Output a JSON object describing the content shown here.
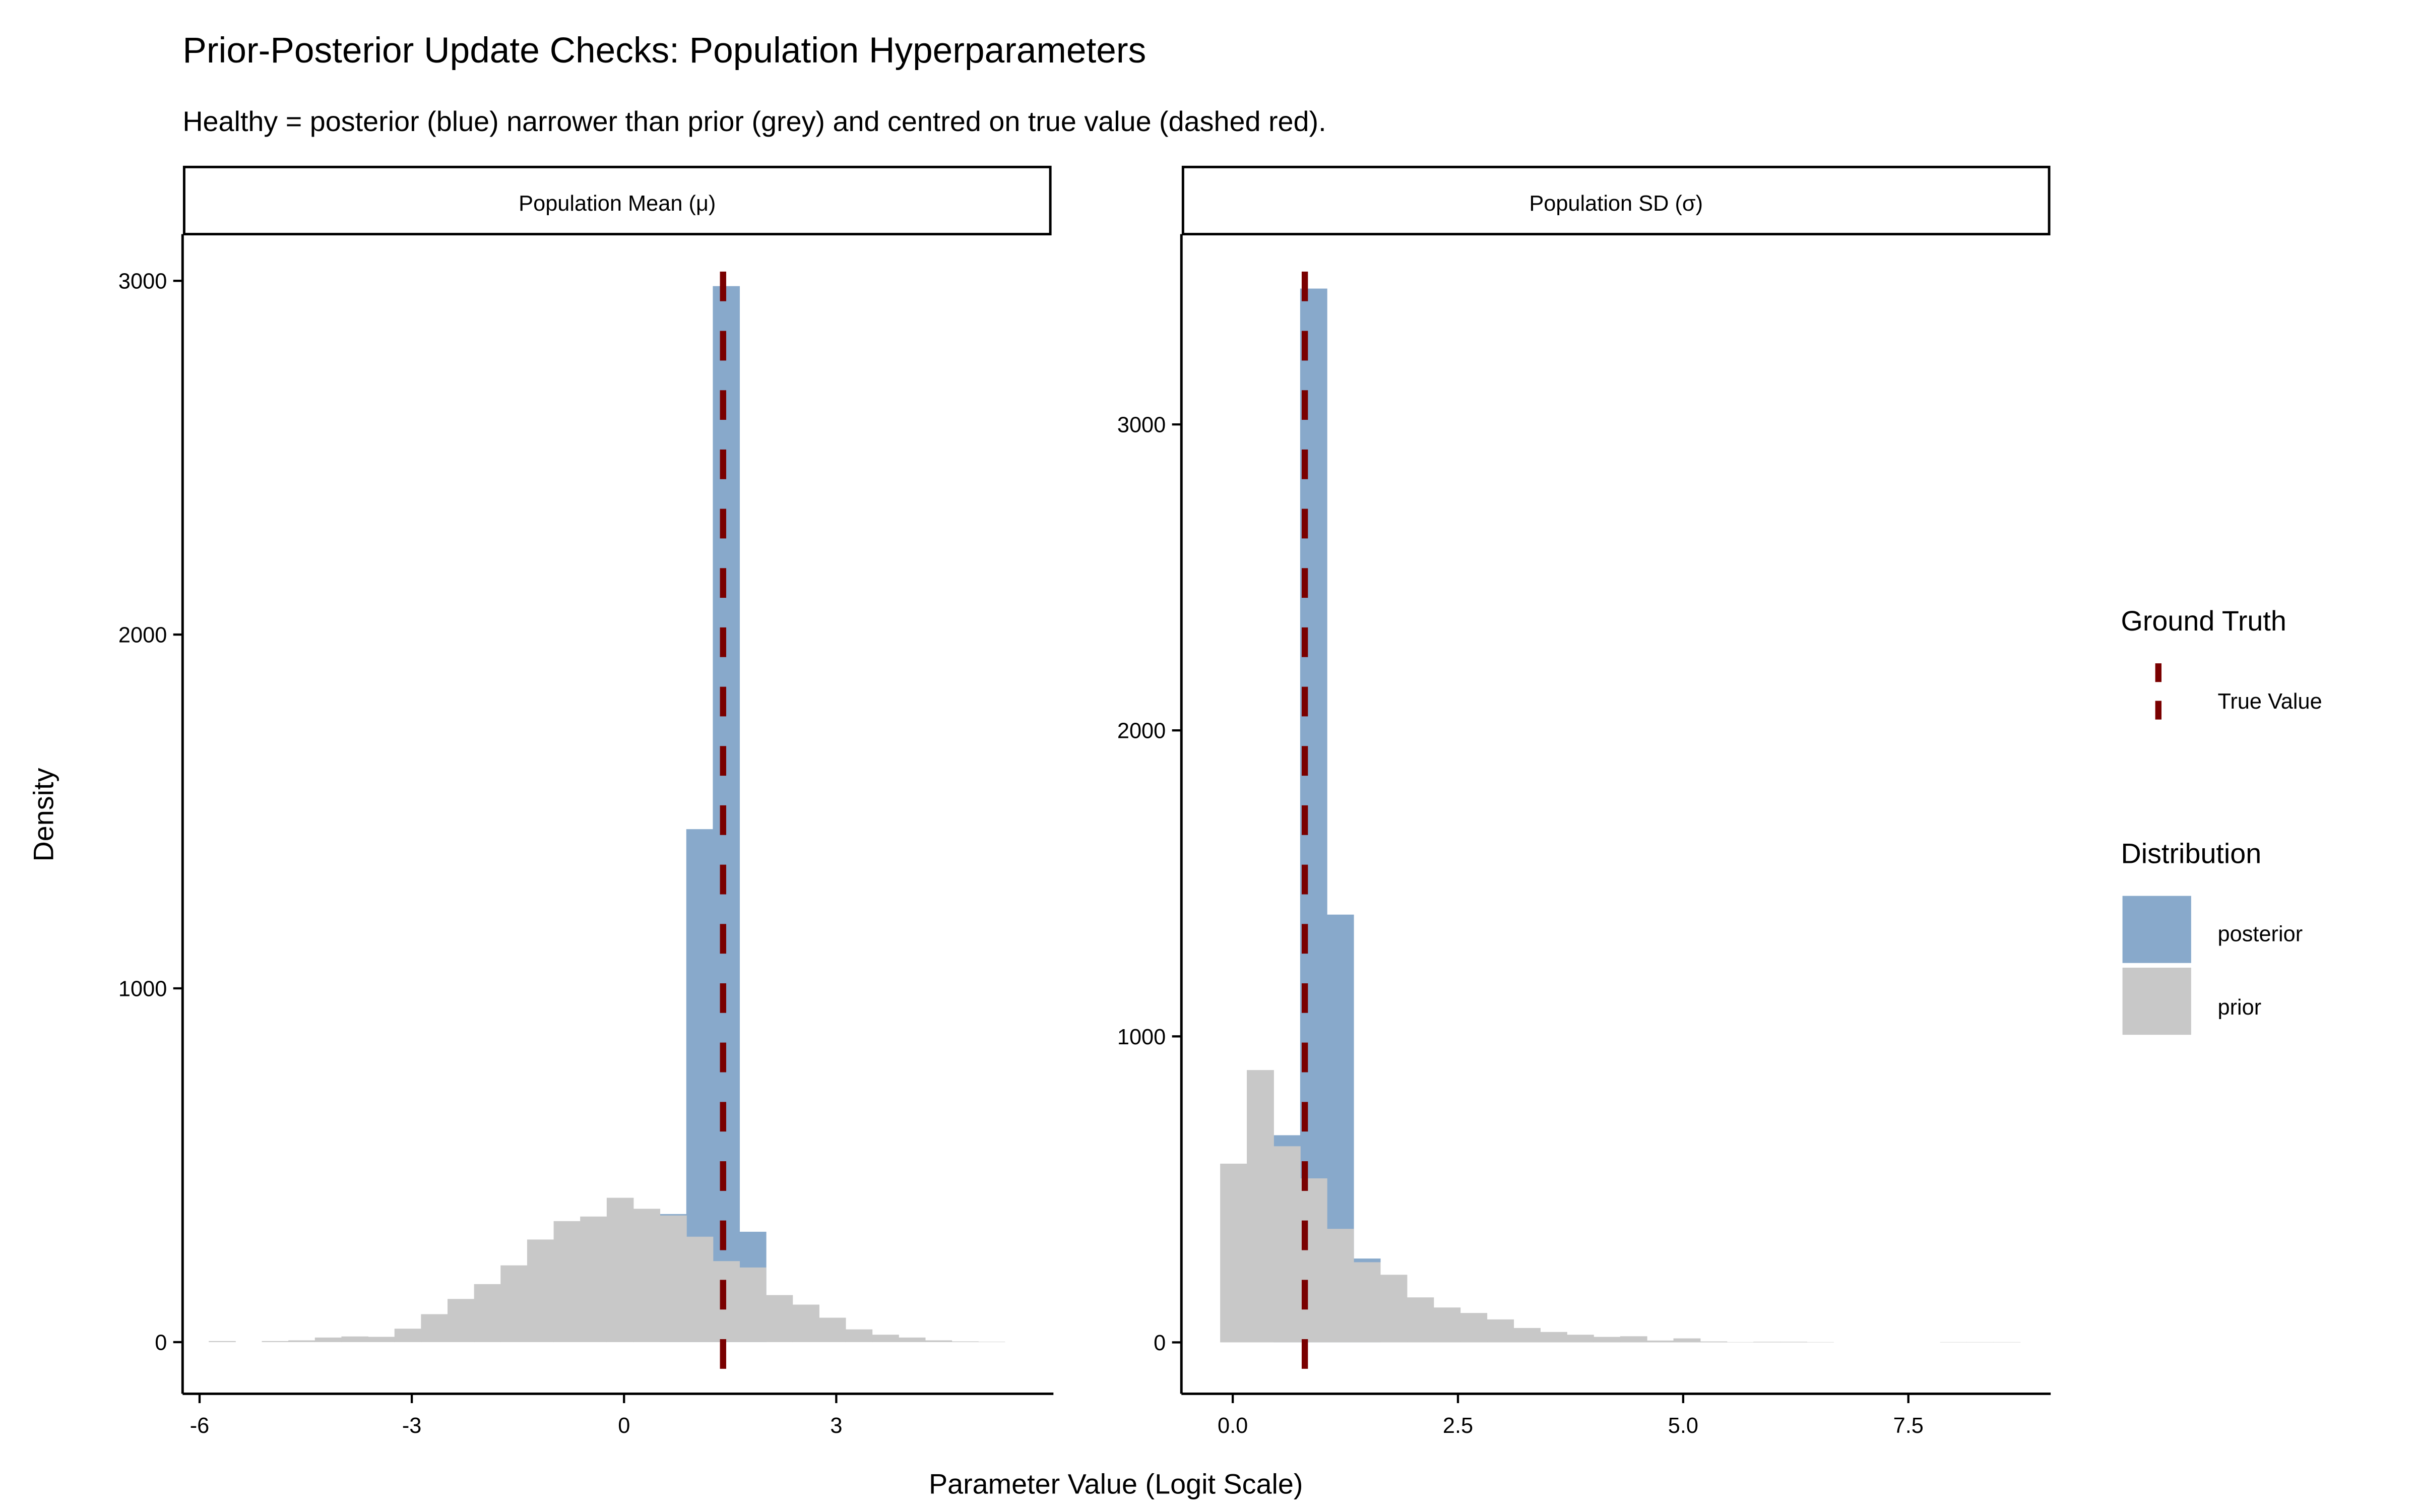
{
  "colors": {
    "posterior": "#88A9CB",
    "prior": "#C8C8C8",
    "true_value": "#7A0000",
    "axis": "#000000"
  },
  "chart_data": {
    "type": "bar",
    "title": "Prior-Posterior Update Checks: Population Hyperparameters",
    "subtitle": "Healthy = posterior (blue) narrower than prior (grey) and centred on true value (dashed red).",
    "xlabel": "Parameter Value (Logit Scale)",
    "ylabel": "Density",
    "legend": {
      "placement": "right",
      "ground_truth_title": "Ground Truth",
      "ground_truth_label": "True Value",
      "distribution_title": "Distribution",
      "entries": [
        {
          "name": "posterior",
          "color": "#88A9CB"
        },
        {
          "name": "prior",
          "color": "#C8C8C8"
        }
      ]
    },
    "panels": [
      {
        "strip": "Population Mean (μ)",
        "xlim": [
          -6.24,
          6.07
        ],
        "ylim": [
          -146,
          3132
        ],
        "xticks": [
          -6,
          -3,
          0,
          3
        ],
        "xtick_labels": [
          "-6",
          "-3",
          "0",
          "3"
        ],
        "yticks": [
          0,
          1000,
          2000,
          3000
        ],
        "ytick_labels": [
          "0",
          "1000",
          "2000",
          "3000"
        ],
        "bin_start": -5.87,
        "bin_width": 0.375,
        "true_value": 1.4,
        "prior": [
          3,
          0,
          3,
          5,
          13,
          16,
          15,
          38,
          79,
          122,
          164,
          217,
          290,
          342,
          355,
          408,
          377,
          358,
          298,
          229,
          211,
          133,
          106,
          69,
          36,
          21,
          13,
          5,
          2,
          1
        ],
        "posterior": [
          0,
          0,
          0,
          0,
          0,
          0,
          0,
          0,
          0,
          0,
          0,
          0,
          0,
          0,
          0,
          0,
          0,
          362,
          1450,
          2985,
          312,
          0,
          0,
          0,
          0,
          0,
          0,
          0,
          0,
          0
        ]
      },
      {
        "strip": "Population SD (σ)",
        "xlim": [
          -0.57,
          9.08
        ],
        "ylim": [
          -168,
          3622
        ],
        "xticks": [
          0,
          2.5,
          5,
          7.5
        ],
        "xtick_labels": [
          "0.0",
          "2.5",
          "5.0",
          "7.5"
        ],
        "yticks": [
          0,
          1000,
          2000,
          3000
        ],
        "ytick_labels": [
          "0",
          "1000",
          "2000",
          "3000"
        ],
        "bin_start": -0.14,
        "bin_width": 0.296,
        "true_value": 0.8,
        "prior": [
          584,
          890,
          641,
          536,
          371,
          262,
          221,
          147,
          114,
          96,
          75,
          47,
          34,
          25,
          18,
          20,
          6,
          13,
          3,
          1,
          2,
          2,
          1,
          0,
          0,
          0,
          0,
          1,
          1,
          1
        ],
        "posterior": [
          0,
          0,
          677,
          3444,
          1398,
          274,
          0,
          0,
          0,
          0,
          0,
          0,
          0,
          0,
          0,
          0,
          0,
          0,
          0,
          0,
          0,
          0,
          0,
          0,
          0,
          0,
          0,
          0,
          0,
          0
        ]
      }
    ]
  }
}
